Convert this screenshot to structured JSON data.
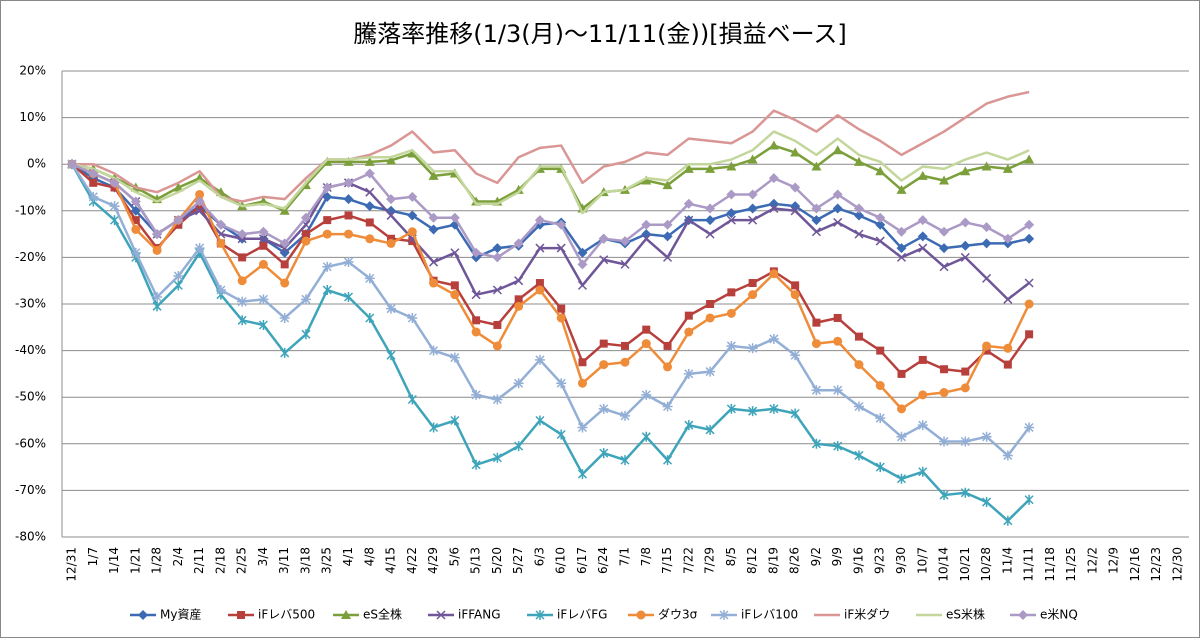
{
  "chart_data": {
    "type": "line",
    "title": "騰落率推移(1/3(月)～11/11(金))[損益ベース]",
    "categories": [
      "12/31",
      "1/7",
      "1/14",
      "1/21",
      "1/28",
      "2/4",
      "2/11",
      "2/18",
      "2/25",
      "3/4",
      "3/11",
      "3/18",
      "3/25",
      "4/1",
      "4/8",
      "4/15",
      "4/22",
      "4/29",
      "5/6",
      "5/13",
      "5/20",
      "5/27",
      "6/3",
      "6/10",
      "6/17",
      "6/24",
      "7/1",
      "7/8",
      "7/15",
      "7/22",
      "7/29",
      "8/5",
      "8/12",
      "8/19",
      "8/26",
      "9/2",
      "9/9",
      "9/16",
      "9/23",
      "9/30",
      "10/7",
      "10/14",
      "10/21",
      "10/28",
      "11/4",
      "11/11",
      "11/18",
      "11/25",
      "12/2",
      "12/9",
      "12/16",
      "12/23",
      "12/30"
    ],
    "ylim": [
      -80,
      20
    ],
    "yticks": [
      {
        "value": 20,
        "label": "20%"
      },
      {
        "value": 10,
        "label": "10%"
      },
      {
        "value": 0,
        "label": "0%"
      },
      {
        "value": -10,
        "label": "-10%"
      },
      {
        "value": -20,
        "label": "-20%"
      },
      {
        "value": -30,
        "label": "-30%"
      },
      {
        "value": -40,
        "label": "-40%"
      },
      {
        "value": -50,
        "label": "-50%"
      },
      {
        "value": -60,
        "label": "-60%"
      },
      {
        "value": -70,
        "label": "-70%"
      },
      {
        "value": -80,
        "label": "-80%"
      }
    ],
    "grid": true,
    "legend": "bottom",
    "series": [
      {
        "name": "My資産",
        "color": "#3c6bb4",
        "marker": "diamond",
        "values": [
          0,
          -3,
          -5,
          -10,
          -15,
          -12,
          -9,
          -13,
          -16,
          -16,
          -19,
          -15,
          -7,
          -7.5,
          -9,
          -10,
          -11,
          -14,
          -13,
          -20,
          -18,
          -17.5,
          -13,
          -12.5,
          -19,
          -16,
          -17,
          -15,
          -15.5,
          -12,
          -12,
          -10.5,
          -9.5,
          -8.5,
          -9,
          -12,
          -9.5,
          -11,
          -13,
          -18,
          -15.5,
          -18,
          -17.5,
          -17,
          -17,
          -16,
          null,
          null,
          null,
          null,
          null,
          null,
          null
        ]
      },
      {
        "name": "iFレバ500",
        "color": "#b7403d",
        "marker": "square",
        "values": [
          0,
          -4,
          -5,
          -12,
          -18,
          -13,
          -9,
          -17,
          -20,
          -17.5,
          -21.5,
          -15,
          -12,
          -11,
          -12.5,
          -16,
          -16.5,
          -25,
          -26,
          -33.5,
          -34.5,
          -29,
          -25.5,
          -31,
          -42.5,
          -38.5,
          -39,
          -35.5,
          -39,
          -32.5,
          -30,
          -27.5,
          -25.5,
          -23,
          -26,
          -34,
          -33,
          -37,
          -40,
          -45,
          -42,
          -44,
          -44.5,
          -40,
          -43,
          -36.5,
          null,
          null,
          null,
          null,
          null,
          null,
          null
        ]
      },
      {
        "name": "eS全株",
        "color": "#7b9f3a",
        "marker": "triangle",
        "values": [
          0,
          -1,
          -3,
          -5,
          -7.5,
          -5,
          -3,
          -6,
          -9,
          -8,
          -10,
          -4.5,
          0.5,
          0.5,
          0.5,
          0.8,
          2.3,
          -2.5,
          -2,
          -8,
          -8,
          -5.5,
          -1,
          -1,
          -9.5,
          -6,
          -5.5,
          -3.5,
          -4.5,
          -1,
          -1,
          -0.5,
          1,
          4,
          2.5,
          -0.5,
          3,
          0.5,
          -1.5,
          -5.5,
          -2.5,
          -3.5,
          -1.5,
          -0.5,
          -1,
          1,
          null,
          null,
          null,
          null,
          null,
          null,
          null
        ]
      },
      {
        "name": "iFFANG",
        "color": "#6e5698",
        "marker": "x",
        "values": [
          0,
          -2,
          -4,
          -8,
          -15,
          -12,
          -10,
          -15,
          -16,
          -16,
          -18,
          -13,
          -5,
          -4,
          -6,
          -11,
          -16,
          -21,
          -19,
          -28,
          -27,
          -25,
          -18,
          -18,
          -26,
          -20.5,
          -21.5,
          -16,
          -20,
          -12,
          -15,
          -12,
          -12,
          -9.5,
          -10,
          -14.5,
          -12.5,
          -15,
          -16.5,
          -20,
          -18,
          -22,
          -20,
          -24.5,
          -29,
          -25.5,
          null,
          null,
          null,
          null,
          null,
          null,
          null
        ]
      },
      {
        "name": "iFレバFG",
        "color": "#3da4ba",
        "marker": "asterisk",
        "values": [
          0,
          -8,
          -12,
          -20,
          -30.5,
          -26,
          -19,
          -28,
          -33.5,
          -34.5,
          -40.5,
          -36.5,
          -27,
          -28.5,
          -33,
          -41,
          -50.5,
          -56.5,
          -55,
          -64.5,
          -63,
          -60.5,
          -55,
          -58,
          -66.5,
          -62,
          -63.5,
          -58.5,
          -63.5,
          -56,
          -57,
          -52.5,
          -53,
          -52.5,
          -53.5,
          -60,
          -60.5,
          -62.5,
          -65,
          -67.5,
          -66,
          -71,
          -70.5,
          -72.5,
          -76.5,
          -72,
          null,
          null,
          null,
          null,
          null,
          null,
          null
        ]
      },
      {
        "name": "ダウ3σ",
        "color": "#ee8c3a",
        "marker": "circle",
        "values": [
          0,
          -2,
          -4,
          -14,
          -18.5,
          -12,
          -6.5,
          -17,
          -25,
          -21.5,
          -25.5,
          -16.5,
          -15,
          -15,
          -16,
          -17,
          -14.5,
          -25.5,
          -28,
          -36,
          -39,
          -30.5,
          -27,
          -33,
          -47,
          -43,
          -42.5,
          -38.5,
          -43.5,
          -36,
          -33,
          -32,
          -28,
          -23.5,
          -28,
          -38.5,
          -38,
          -43,
          -47.5,
          -52.5,
          -49.5,
          -49,
          -48,
          -39,
          -39.5,
          -30,
          null,
          null,
          null,
          null,
          null,
          null,
          null
        ]
      },
      {
        "name": "iFレバ100",
        "color": "#93afd6",
        "marker": "star",
        "values": [
          0,
          -7,
          -9,
          -19,
          -28.5,
          -24,
          -18,
          -27,
          -29.5,
          -29,
          -33,
          -29,
          -22,
          -21,
          -24.5,
          -31,
          -33,
          -40,
          -41.5,
          -49.5,
          -50.5,
          -47,
          -42,
          -47,
          -56.5,
          -52.5,
          -54,
          -49.5,
          -52,
          -45,
          -44.5,
          -39,
          -39.5,
          -37.5,
          -41,
          -48.5,
          -48.5,
          -52,
          -54.5,
          -58.5,
          -56,
          -59.5,
          -59.5,
          -58.5,
          -62.5,
          -56.5,
          null,
          null,
          null,
          null,
          null,
          null,
          null
        ]
      },
      {
        "name": "iF米ダウ",
        "color": "#d99694",
        "values": [
          0,
          0,
          -2,
          -5,
          -6,
          -4,
          -1.5,
          -7,
          -8,
          -7,
          -7.5,
          -3,
          1,
          1,
          2,
          4,
          7,
          2.5,
          3,
          -2,
          -4,
          1.5,
          3.5,
          4,
          -4,
          -0.5,
          0.5,
          2.5,
          2,
          5.5,
          5,
          4.5,
          7,
          11.5,
          9.5,
          7,
          10.5,
          7.5,
          5,
          2,
          4.5,
          7,
          10,
          13,
          14.5,
          15.5,
          null,
          null,
          null,
          null,
          null,
          null,
          null
        ]
      },
      {
        "name": "eS米株",
        "color": "#c3d69b",
        "values": [
          0,
          -1,
          -3,
          -6,
          -8,
          -6,
          -3.5,
          -7,
          -9,
          -8.5,
          -9.5,
          -4,
          1,
          1,
          1.5,
          1.5,
          3,
          -1.5,
          -1.5,
          -8.5,
          -8.5,
          -6,
          -0.5,
          -0.5,
          -10.5,
          -6,
          -5.5,
          -3,
          -3.5,
          0,
          0,
          1,
          3,
          7,
          5,
          2,
          5.5,
          2,
          0.5,
          -3.5,
          -0.5,
          -1,
          1,
          2.5,
          1,
          3,
          null,
          null,
          null,
          null,
          null,
          null,
          null
        ]
      },
      {
        "name": "e米NQ",
        "color": "#ab9ac6",
        "marker": "diamond",
        "values": [
          0,
          -2,
          -4,
          -8,
          -15,
          -12,
          -8,
          -13,
          -15,
          -14.5,
          -17,
          -11.5,
          -5,
          -4,
          -2,
          -7.5,
          -7,
          -11.5,
          -11.5,
          -19,
          -20,
          -17,
          -12,
          -13,
          -21.5,
          -16,
          -16.5,
          -13,
          -13,
          -8.5,
          -9.5,
          -6.5,
          -6.5,
          -3,
          -5,
          -9.5,
          -6.5,
          -9.5,
          -11.5,
          -14.5,
          -12,
          -14.5,
          -12.5,
          -13.5,
          -16,
          -13,
          null,
          null,
          null,
          null,
          null,
          null,
          null
        ]
      }
    ]
  }
}
